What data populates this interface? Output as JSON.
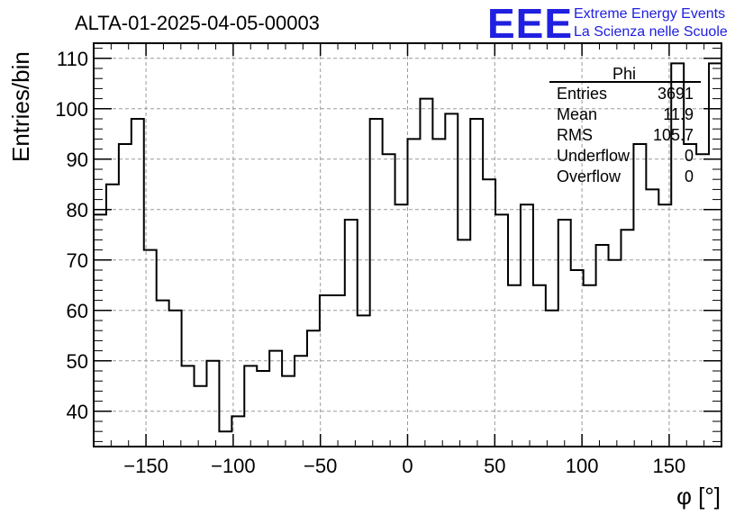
{
  "header": {
    "title": "ALTA-01-2025-04-05-00003",
    "logo_text": "EEE",
    "brand_line1": "Extreme Energy Events",
    "brand_line2": "La Scienza nelle Scuole"
  },
  "stats_box": {
    "name": "Phi",
    "rows": [
      {
        "label": "Entries",
        "value": "3691"
      },
      {
        "label": "Mean",
        "value": "11.9"
      },
      {
        "label": "RMS",
        "value": "105.7"
      },
      {
        "label": "Underflow",
        "value": "0"
      },
      {
        "label": "Overflow",
        "value": "0"
      }
    ]
  },
  "colors": {
    "logo": "#2020e0",
    "histogram": "#000000",
    "grid": "#9a9a9a"
  },
  "chart_data": {
    "type": "histogram",
    "xlabel": "φ [°]",
    "ylabel": "Entries/bin",
    "xlim": [
      -180,
      180
    ],
    "ylim": [
      33,
      113
    ],
    "xticks": [
      -150,
      -100,
      -50,
      0,
      50,
      100,
      150
    ],
    "yticks": [
      40,
      50,
      60,
      70,
      80,
      90,
      100,
      110
    ],
    "grid": true,
    "bin_edges_start": -180,
    "bin_width": 7.2,
    "values": [
      79,
      85,
      93,
      98,
      72,
      62,
      60,
      49,
      45,
      50,
      36,
      39,
      49,
      48,
      52,
      47,
      51,
      56,
      63,
      63,
      78,
      59,
      98,
      91,
      81,
      94,
      102,
      94,
      99,
      74,
      98,
      86,
      79,
      65,
      81,
      65,
      60,
      78,
      68,
      65,
      73,
      70,
      76,
      93,
      84,
      81,
      109,
      93,
      91,
      109
    ]
  }
}
